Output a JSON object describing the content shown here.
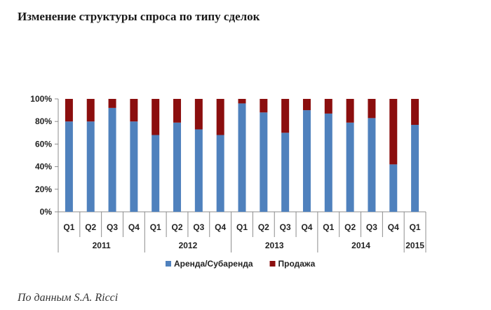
{
  "page": {
    "title": "Изменение структуры спроса по типу сделок",
    "source": "По данным S.A. Ricci"
  },
  "chart_data": {
    "type": "bar",
    "stacked": true,
    "categories": [
      "Q1",
      "Q2",
      "Q3",
      "Q4",
      "Q1",
      "Q2",
      "Q3",
      "Q4",
      "Q1",
      "Q2",
      "Q3",
      "Q4",
      "Q1",
      "Q2",
      "Q3",
      "Q4",
      "Q1"
    ],
    "years": [
      {
        "label": "2011",
        "count": 4
      },
      {
        "label": "2012",
        "count": 4
      },
      {
        "label": "2013",
        "count": 4
      },
      {
        "label": "2014",
        "count": 4
      },
      {
        "label": "2015",
        "count": 1
      }
    ],
    "series": [
      {
        "name": "Аренда/Субаренда",
        "color": "#4f81bd",
        "values": [
          80,
          80,
          92,
          80,
          68,
          79,
          73,
          68,
          96,
          88,
          70,
          90,
          87,
          79,
          83,
          42,
          77
        ]
      },
      {
        "name": "Продажа",
        "color": "#8b0e0e",
        "values": [
          20,
          20,
          8,
          20,
          32,
          21,
          27,
          32,
          4,
          12,
          30,
          10,
          13,
          21,
          17,
          58,
          23
        ]
      }
    ],
    "yticks": [
      "0%",
      "20%",
      "40%",
      "60%",
      "80%",
      "100%"
    ],
    "ylim": [
      0,
      100
    ],
    "legend_position": "bottom",
    "grid": false
  }
}
